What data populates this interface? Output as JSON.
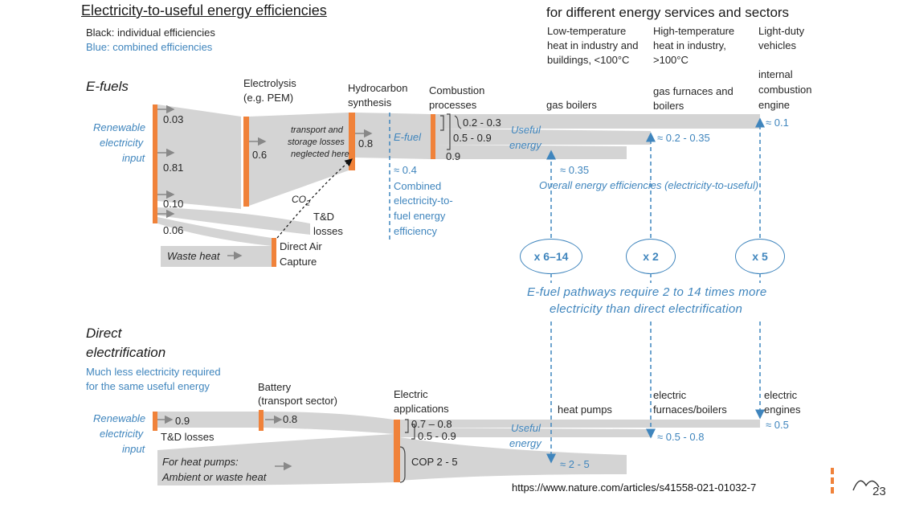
{
  "header": {
    "title": "Electricity-to-useful energy efficiencies",
    "subtitle": "for different energy services and sectors",
    "legend_black": "Black: individual efficiencies",
    "legend_blue": "Blue: combined efficiencies"
  },
  "columns": {
    "low_temp": [
      "Low-temperature",
      "heat in industry and",
      "buildings, <100°C"
    ],
    "high_temp": [
      "High-temperature",
      "heat in industry,",
      ">100°C"
    ],
    "vehicles": [
      "Light-duty",
      "vehicles"
    ]
  },
  "efuels": {
    "section": "E-fuels",
    "input": [
      "Renewable",
      "electricity",
      "input"
    ],
    "split": [
      "0.03",
      "0.81",
      "0.10",
      "0.06"
    ],
    "electrolysis": [
      "Electrolysis",
      "(e.g. PEM)"
    ],
    "electrolysis_eff": "0.6",
    "transport_note": [
      "transport and",
      "storage losses",
      "neglected here"
    ],
    "hydrocarbon": [
      "Hydrocarbon",
      "synthesis"
    ],
    "hydrocarbon_eff": "0.8",
    "co2": "CO",
    "co2_sub": "2",
    "td_losses": [
      "T&D",
      "losses"
    ],
    "dac": [
      "Direct Air",
      "Capture"
    ],
    "waste_heat": "Waste heat",
    "efuel_label": "E-fuel",
    "efuel_combined": [
      "≈ 0.4",
      "Combined",
      "electricity-to-",
      "fuel energy",
      "efficiency"
    ],
    "combustion": [
      "Combustion",
      "processes"
    ],
    "combustion_effs": [
      "0.2 - 0.3",
      "0.5 - 0.9",
      "0.9"
    ],
    "useful_energy": [
      "Useful",
      "energy"
    ],
    "gas_boilers": "gas boilers",
    "gas_furnaces": [
      "gas furnaces and",
      "boilers"
    ],
    "ice": [
      "internal",
      "combustion",
      "engine"
    ],
    "res_low": "≈ 0.35",
    "res_high": "≈ 0.2 - 0.35",
    "res_veh": "≈ 0.1",
    "overall": "Overall energy efficiencies (electricity-to-useful)"
  },
  "multipliers": [
    "x 6–14",
    "x 2",
    "x 5"
  ],
  "message": [
    "E-fuel pathways require 2 to 14 times more",
    "electricity than direct electrification"
  ],
  "direct": {
    "section": [
      "Direct",
      "electrification"
    ],
    "note": [
      "Much less electricity required",
      "for the same useful energy"
    ],
    "input": [
      "Renewable",
      "electricity",
      "input"
    ],
    "td_eff": "0.9",
    "td_label": "T&D losses",
    "battery": [
      "Battery",
      "(transport sector)"
    ],
    "battery_eff": "0.8",
    "ambient": [
      "For heat pumps:",
      "Ambient or waste heat"
    ],
    "electric_apps": [
      "Electric",
      "applications"
    ],
    "app_effs": [
      "0.7 – 0.8",
      "0.5 - 0.9",
      "COP 2 - 5"
    ],
    "useful_energy": [
      "Useful",
      "energy"
    ],
    "heat_pumps": "heat pumps",
    "furnaces": [
      "electric",
      "furnaces/boilers"
    ],
    "engines": [
      "electric",
      "engines"
    ],
    "res_low": "≈ 2 - 5",
    "res_high": "≈ 0.5 - 0.8",
    "res_veh": "≈ 0.5"
  },
  "footer": {
    "url": "https://www.nature.com/articles/s41558-021-01032-7",
    "page_number": "23"
  },
  "colors": {
    "flow": "#d4d4d4",
    "process_bar": "#f0823a",
    "blue": "#3f85bd"
  }
}
